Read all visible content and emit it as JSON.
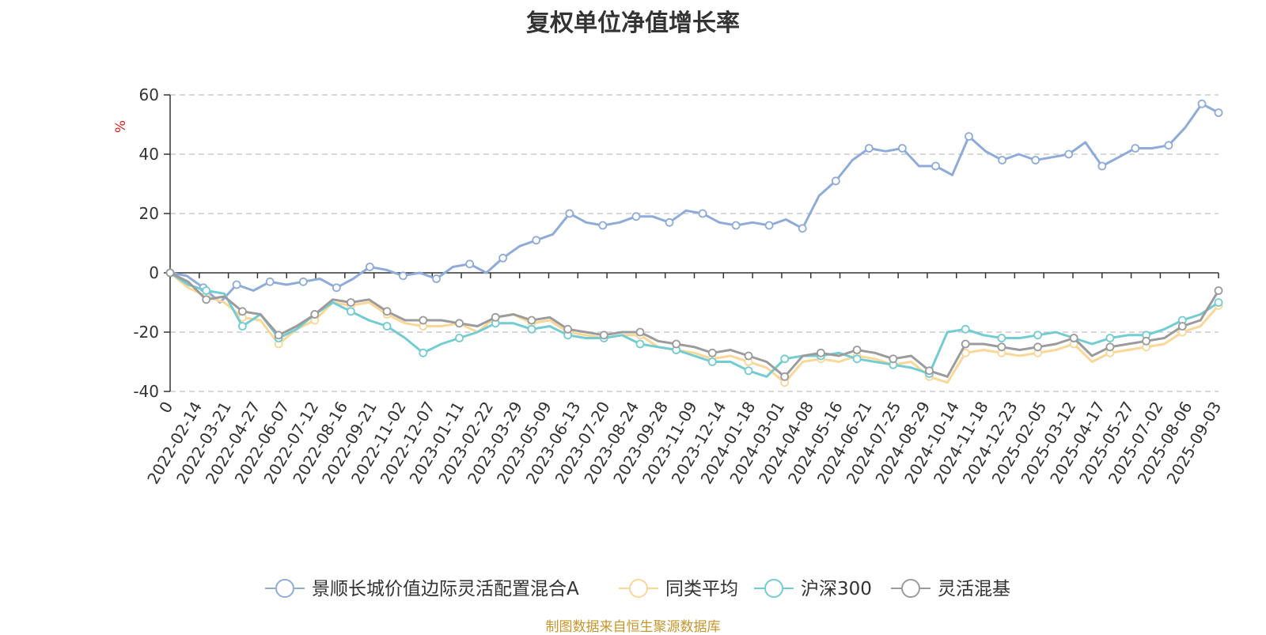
{
  "chart_data": {
    "type": "line",
    "title": "复权单位净值增长率",
    "ylabel": "%",
    "xlabel": "",
    "ylim": [
      -40,
      60
    ],
    "yticks": [
      -40,
      -20,
      0,
      20,
      40,
      60
    ],
    "x_ticks": [
      "0",
      "2022-02-14",
      "2022-03-21",
      "2022-04-27",
      "2022-06-07",
      "2022-07-12",
      "2022-08-16",
      "2022-09-21",
      "2022-11-02",
      "2022-12-07",
      "2023-01-11",
      "2023-02-22",
      "2023-03-29",
      "2023-05-09",
      "2023-06-13",
      "2023-07-20",
      "2023-08-24",
      "2023-09-28",
      "2023-11-09",
      "2023-12-14",
      "2024-01-18",
      "2024-03-01",
      "2024-04-08",
      "2024-05-16",
      "2024-06-21",
      "2024-07-25",
      "2024-08-29",
      "2024-10-14",
      "2024-11-18",
      "2024-12-23",
      "2025-02-05",
      "2025-03-12",
      "2025-04-17",
      "2025-05-27",
      "2025-07-02",
      "2025-08-06",
      "2025-09-03"
    ],
    "grid": true,
    "legend_position": "bottom",
    "series": [
      {
        "name": "景顺长城价值边际灵活配置混合A",
        "color": "#8fabd9",
        "values": [
          0,
          -1,
          -5,
          -10,
          -4,
          -6,
          -3,
          -4,
          -3,
          -2,
          -5,
          -2,
          2,
          1,
          -1,
          0,
          -2,
          2,
          3,
          0,
          5,
          9,
          11,
          13,
          20,
          17,
          16,
          17,
          19,
          19,
          17,
          21,
          20,
          17,
          16,
          17,
          16,
          18,
          15,
          26,
          31,
          38,
          42,
          41,
          42,
          36,
          36,
          33,
          46,
          41,
          38,
          40,
          38,
          39,
          40,
          44,
          36,
          39,
          42,
          42,
          43,
          49,
          57,
          54
        ]
      },
      {
        "name": "同类平均",
        "color": "#fad797",
        "values": [
          0,
          -5,
          -8,
          -10,
          -15,
          -16,
          -24,
          -19,
          -16,
          -10,
          -11,
          -10,
          -14,
          -17,
          -18,
          -18,
          -17,
          -20,
          -15,
          -14,
          -17,
          -16,
          -20,
          -21,
          -22,
          -21,
          -21,
          -25,
          -26,
          -27,
          -29,
          -28,
          -30,
          -32,
          -37,
          -30,
          -29,
          -30,
          -28,
          -29,
          -31,
          -30,
          -35,
          -37,
          -27,
          -26,
          -27,
          -28,
          -27,
          -26,
          -24,
          -30,
          -27,
          -26,
          -25,
          -24,
          -20,
          -18,
          -11
        ]
      },
      {
        "name": "沪深300",
        "color": "#72ccd1",
        "values": [
          0,
          -4,
          -6,
          -7,
          -18,
          -14,
          -22,
          -19,
          -14,
          -10,
          -13,
          -16,
          -18,
          -22,
          -27,
          -24,
          -22,
          -20,
          -17,
          -17,
          -19,
          -18,
          -21,
          -22,
          -22,
          -21,
          -24,
          -25,
          -26,
          -28,
          -30,
          -30,
          -33,
          -35,
          -29,
          -28,
          -28,
          -27,
          -29,
          -30,
          -31,
          -32,
          -34,
          -20,
          -19,
          -21,
          -22,
          -22,
          -21,
          -20,
          -22,
          -24,
          -22,
          -21,
          -21,
          -19,
          -16,
          -14,
          -10
        ]
      },
      {
        "name": "灵活混基",
        "color": "#9b9b9b",
        "values": [
          0,
          -3,
          -9,
          -8,
          -13,
          -14,
          -21,
          -18,
          -14,
          -9,
          -10,
          -9,
          -13,
          -16,
          -16,
          -16,
          -17,
          -18,
          -15,
          -14,
          -16,
          -15,
          -19,
          -20,
          -21,
          -20,
          -20,
          -23,
          -24,
          -25,
          -27,
          -26,
          -28,
          -30,
          -35,
          -28,
          -27,
          -28,
          -26,
          -27,
          -29,
          -28,
          -33,
          -35,
          -24,
          -24,
          -25,
          -26,
          -25,
          -24,
          -22,
          -28,
          -25,
          -24,
          -23,
          -22,
          -18,
          -16,
          -6
        ]
      }
    ]
  },
  "source_note": "制图数据来自恒生聚源数据库"
}
